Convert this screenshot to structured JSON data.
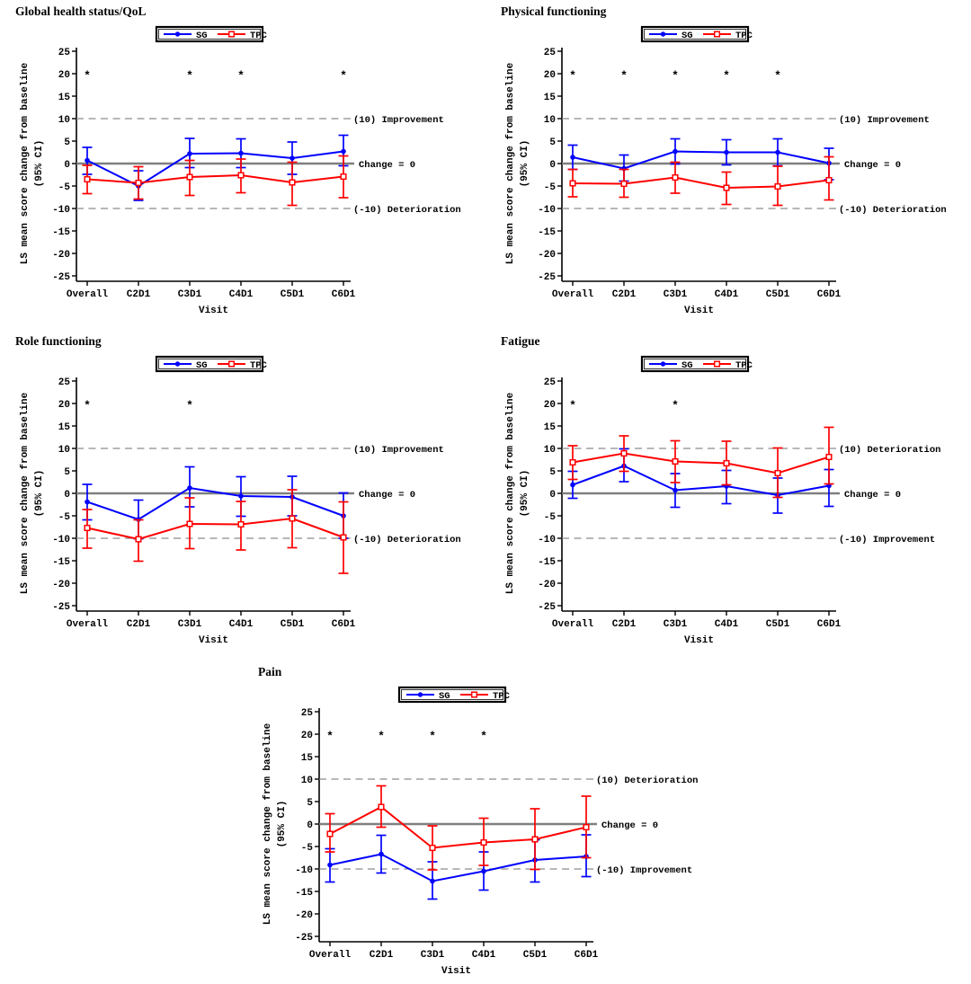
{
  "figure": {
    "asterisk_symbol": "*",
    "colors": {
      "sg": "#0000ff",
      "tpc": "#ff0000",
      "zero_line": "#7f7f7f",
      "ref_dashed": "#8c8c8c",
      "axis": "#000000"
    }
  },
  "chart_data": [
    {
      "type": "line",
      "title": "Global health status/QoL",
      "categories": [
        "Overall",
        "C2D1",
        "C3D1",
        "C4D1",
        "C5D1",
        "C6D1"
      ],
      "xlabel": "Visit",
      "ylabel": "LS mean score change from baseline",
      "ylabel2": "(95% CI)",
      "ylim": [
        -25,
        25
      ],
      "ytick_labels": [
        "25",
        "20",
        "15",
        "10",
        "5",
        "0",
        "-5",
        "-10",
        "-15",
        "-20",
        "-25"
      ],
      "legend_position": "top-center",
      "grid": false,
      "ref_lines": [
        {
          "value": 10,
          "style": "dashed",
          "label": "(10) Improvement"
        },
        {
          "value": 0,
          "style": "solid",
          "label": "Change = 0"
        },
        {
          "value": -10,
          "style": "dashed",
          "label": "(-10) Deterioration"
        }
      ],
      "asterisk_y": 20,
      "asterisks": [
        true,
        false,
        true,
        true,
        false,
        true
      ],
      "series": [
        {
          "name": "SG",
          "color": "#0000ff",
          "marker": "filled-circle",
          "values": [
            0.7,
            -5.0,
            2.2,
            2.3,
            1.2,
            2.7
          ],
          "ci_lower": [
            -2.4,
            -8.2,
            -0.9,
            -0.9,
            -2.4,
            -0.5
          ],
          "ci_upper": [
            3.6,
            -1.6,
            5.6,
            5.5,
            4.8,
            6.3
          ]
        },
        {
          "name": "TPC",
          "color": "#ff0000",
          "marker": "open-square",
          "values": [
            -3.5,
            -4.3,
            -3.0,
            -2.6,
            -4.2,
            -2.9
          ],
          "ci_lower": [
            -6.7,
            -7.9,
            -7.1,
            -6.5,
            -9.3,
            -7.6
          ],
          "ci_upper": [
            -0.4,
            -0.7,
            0.7,
            1.0,
            0.3,
            1.7
          ]
        }
      ]
    },
    {
      "type": "line",
      "title": "Physical functioning",
      "categories": [
        "Overall",
        "C2D1",
        "C3D1",
        "C4D1",
        "C5D1",
        "C6D1"
      ],
      "xlabel": "Visit",
      "ylabel": "LS mean score change from baseline",
      "ylabel2": "(95% CI)",
      "ylim": [
        -25,
        25
      ],
      "ytick_labels": [
        "25",
        "20",
        "15",
        "10",
        "5",
        "0",
        "-5",
        "-10",
        "-15",
        "-20",
        "-25"
      ],
      "legend_position": "top-center",
      "grid": false,
      "ref_lines": [
        {
          "value": 10,
          "style": "dashed",
          "label": "(10) Improvement"
        },
        {
          "value": 0,
          "style": "solid",
          "label": "Change = 0"
        },
        {
          "value": -10,
          "style": "dashed",
          "label": "(-10) Deterioration"
        }
      ],
      "asterisk_y": 20,
      "asterisks": [
        true,
        true,
        true,
        true,
        true,
        false
      ],
      "series": [
        {
          "name": "SG",
          "color": "#0000ff",
          "marker": "filled-circle",
          "values": [
            1.4,
            -1.1,
            2.7,
            2.5,
            2.5,
            0.1
          ],
          "ci_lower": [
            -1.3,
            -3.9,
            -0.1,
            -0.3,
            -0.5,
            -3.6
          ],
          "ci_upper": [
            4.1,
            1.9,
            5.5,
            5.3,
            5.5,
            3.4
          ]
        },
        {
          "name": "TPC",
          "color": "#ff0000",
          "marker": "open-square",
          "values": [
            -4.4,
            -4.5,
            -3.1,
            -5.4,
            -5.1,
            -3.7
          ],
          "ci_lower": [
            -7.4,
            -7.5,
            -6.6,
            -9.1,
            -9.3,
            -8.1
          ],
          "ci_upper": [
            -1.3,
            -1.3,
            0.3,
            -1.9,
            -0.6,
            1.5
          ]
        }
      ]
    },
    {
      "type": "line",
      "title": "Role functioning",
      "categories": [
        "Overall",
        "C2D1",
        "C3D1",
        "C4D1",
        "C5D1",
        "C6D1"
      ],
      "xlabel": "Visit",
      "ylabel": "LS mean score change from baseline",
      "ylabel2": "(95% CI)",
      "ylim": [
        -25,
        25
      ],
      "ytick_labels": [
        "25",
        "20",
        "15",
        "10",
        "5",
        "0",
        "-5",
        "-10",
        "-15",
        "-20",
        "-25"
      ],
      "legend_position": "top-center",
      "grid": false,
      "ref_lines": [
        {
          "value": 10,
          "style": "dashed",
          "label": "(10) Improvement"
        },
        {
          "value": 0,
          "style": "solid",
          "label": "Change = 0"
        },
        {
          "value": -10,
          "style": "dashed",
          "label": "(-10) Deterioration"
        }
      ],
      "asterisk_y": 20,
      "asterisks": [
        true,
        false,
        true,
        false,
        false,
        false
      ],
      "series": [
        {
          "name": "SG",
          "color": "#0000ff",
          "marker": "filled-circle",
          "values": [
            -1.9,
            -5.8,
            1.2,
            -0.6,
            -0.8,
            -5.0
          ],
          "ci_lower": [
            -5.9,
            -10.1,
            -3.0,
            -5.1,
            -5.0,
            -10.0
          ],
          "ci_upper": [
            2.0,
            -1.5,
            5.9,
            3.7,
            3.8,
            0.1
          ]
        },
        {
          "name": "TPC",
          "color": "#ff0000",
          "marker": "open-square",
          "values": [
            -7.7,
            -10.2,
            -6.8,
            -6.9,
            -5.6,
            -9.8
          ],
          "ci_lower": [
            -12.2,
            -15.1,
            -12.3,
            -12.6,
            -12.1,
            -17.8
          ],
          "ci_upper": [
            -3.6,
            -5.9,
            -1.0,
            -1.8,
            0.8,
            -1.9
          ]
        }
      ]
    },
    {
      "type": "line",
      "title": "Fatigue",
      "categories": [
        "Overall",
        "C2D1",
        "C3D1",
        "C4D1",
        "C5D1",
        "C6D1"
      ],
      "xlabel": "Visit",
      "ylabel": "LS mean score change from baseline",
      "ylabel2": "(95% CI)",
      "ylim": [
        -25,
        25
      ],
      "ytick_labels": [
        "25",
        "20",
        "15",
        "10",
        "5",
        "0",
        "-5",
        "-10",
        "-15",
        "-20",
        "-25"
      ],
      "legend_position": "top-center",
      "grid": false,
      "ref_lines": [
        {
          "value": 10,
          "style": "dashed",
          "label": "(10) Deterioration"
        },
        {
          "value": 0,
          "style": "solid",
          "label": "Change = 0"
        },
        {
          "value": -10,
          "style": "dashed",
          "label": "(-10) Improvement"
        }
      ],
      "asterisk_y": 20,
      "asterisks": [
        true,
        false,
        true,
        false,
        false,
        false
      ],
      "series": [
        {
          "name": "SG",
          "color": "#0000ff",
          "marker": "filled-circle",
          "values": [
            1.9,
            6.1,
            0.7,
            1.6,
            -0.4,
            1.7
          ],
          "ci_lower": [
            -1.1,
            2.6,
            -3.1,
            -2.3,
            -4.4,
            -2.9
          ],
          "ci_upper": [
            4.9,
            9.9,
            4.4,
            5.1,
            3.4,
            5.3
          ]
        },
        {
          "name": "TPC",
          "color": "#ff0000",
          "marker": "open-square",
          "values": [
            6.9,
            8.9,
            7.1,
            6.7,
            4.5,
            8.1
          ],
          "ci_lower": [
            3.1,
            4.9,
            2.4,
            1.9,
            -0.9,
            2.1
          ],
          "ci_upper": [
            10.6,
            12.8,
            11.7,
            11.6,
            10.1,
            14.7
          ]
        }
      ]
    },
    {
      "type": "line",
      "title": "Pain",
      "categories": [
        "Overall",
        "C2D1",
        "C3D1",
        "C4D1",
        "C5D1",
        "C6D1"
      ],
      "xlabel": "Visit",
      "ylabel": "LS mean score change from baseline",
      "ylabel2": "(95% CI)",
      "ylim": [
        -25,
        25
      ],
      "ytick_labels": [
        "25",
        "20",
        "15",
        "10",
        "5",
        "0",
        "-5",
        "-10",
        "-15",
        "-20",
        "-25"
      ],
      "legend_position": "top-center",
      "grid": false,
      "ref_lines": [
        {
          "value": 10,
          "style": "dashed",
          "label": "(10) Deterioration"
        },
        {
          "value": 0,
          "style": "solid",
          "label": "Change = 0"
        },
        {
          "value": -10,
          "style": "dashed",
          "label": "(-10) Improvement"
        }
      ],
      "asterisk_y": 20,
      "asterisks": [
        true,
        true,
        true,
        true,
        false,
        false
      ],
      "series": [
        {
          "name": "SG",
          "color": "#0000ff",
          "marker": "filled-circle",
          "values": [
            -9.1,
            -6.7,
            -12.7,
            -10.5,
            -8.0,
            -7.2
          ],
          "ci_lower": [
            -12.9,
            -10.9,
            -16.7,
            -14.7,
            -12.9,
            -11.7
          ],
          "ci_upper": [
            -5.5,
            -2.5,
            -8.4,
            -6.2,
            -3.5,
            -2.4
          ]
        },
        {
          "name": "TPC",
          "color": "#ff0000",
          "marker": "open-square",
          "values": [
            -2.2,
            3.8,
            -5.3,
            -4.1,
            -3.4,
            -0.7
          ],
          "ci_lower": [
            -6.2,
            -0.7,
            -10.2,
            -9.2,
            -10.1,
            -7.5
          ],
          "ci_upper": [
            2.3,
            8.5,
            -0.4,
            1.3,
            3.4,
            6.2
          ]
        }
      ]
    }
  ]
}
